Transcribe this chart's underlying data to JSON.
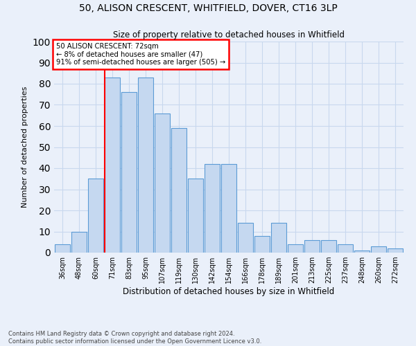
{
  "title1": "50, ALISON CRESCENT, WHITFIELD, DOVER, CT16 3LP",
  "title2": "Size of property relative to detached houses in Whitfield",
  "xlabel": "Distribution of detached houses by size in Whitfield",
  "ylabel": "Number of detached properties",
  "categories": [
    "36sqm",
    "48sqm",
    "60sqm",
    "71sqm",
    "83sqm",
    "95sqm",
    "107sqm",
    "119sqm",
    "130sqm",
    "142sqm",
    "154sqm",
    "166sqm",
    "178sqm",
    "189sqm",
    "201sqm",
    "213sqm",
    "225sqm",
    "237sqm",
    "248sqm",
    "260sqm",
    "272sqm"
  ],
  "values": [
    4,
    10,
    35,
    83,
    76,
    83,
    66,
    59,
    35,
    42,
    42,
    14,
    8,
    14,
    4,
    6,
    6,
    4,
    1,
    3,
    2
  ],
  "bar_color": "#c5d8f0",
  "bar_edge_color": "#5b9bd5",
  "red_line_index": 3,
  "annotation_text_line1": "50 ALISON CRESCENT: 72sqm",
  "annotation_text_line2": "← 8% of detached houses are smaller (47)",
  "annotation_text_line3": "91% of semi-detached houses are larger (505) →",
  "annotation_box_color": "white",
  "annotation_border_color": "red",
  "footer1": "Contains HM Land Registry data © Crown copyright and database right 2024.",
  "footer2": "Contains public sector information licensed under the Open Government Licence v3.0.",
  "ylim": [
    0,
    100
  ],
  "bg_color": "#eaf0fa",
  "grid_color": "#c8d8ee"
}
